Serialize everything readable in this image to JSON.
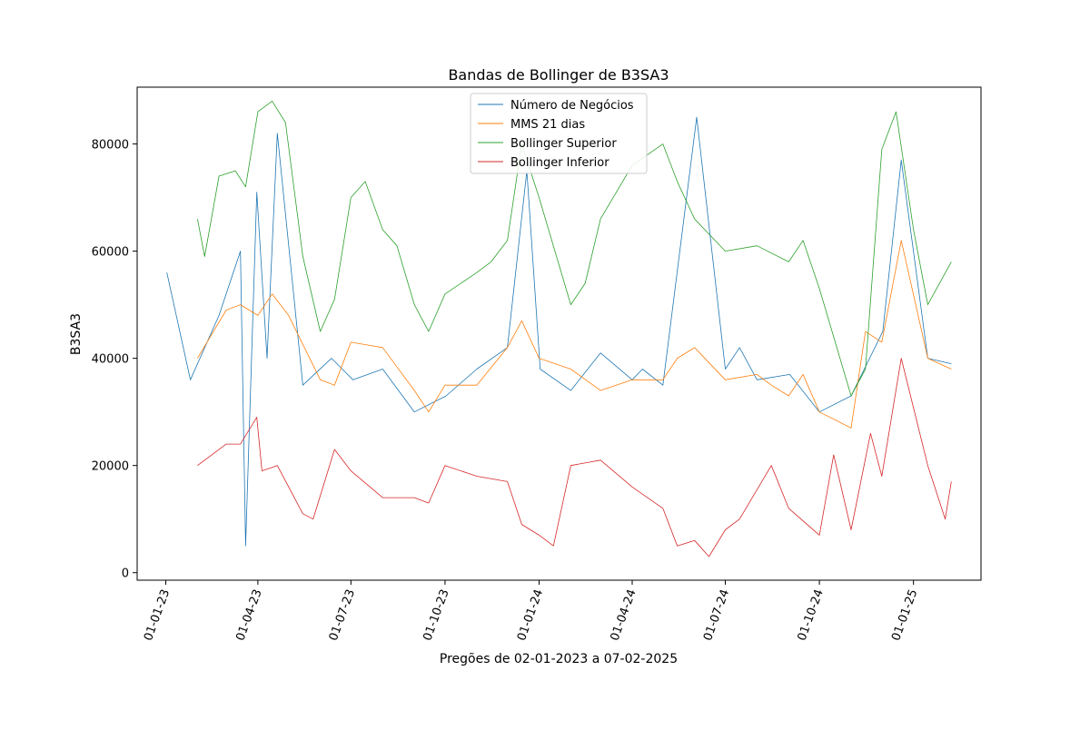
{
  "chart_data": {
    "type": "line",
    "title": "Bandas de Bollinger de B3SA3",
    "xlabel": "Pregões de 02-01-2023 a 07-02-2025",
    "ylabel": "B3SA3",
    "x_start": "2023-01-02",
    "x_end": "2025-02-07",
    "xlim": [
      "2022-12-04",
      "2025-03-08"
    ],
    "ylim": [
      -1400,
      90600
    ],
    "x_tick_labels": [
      "01-01-23",
      "01-04-23",
      "01-07-23",
      "01-10-23",
      "01-01-24",
      "01-04-24",
      "01-07-24",
      "01-10-24",
      "01-01-25"
    ],
    "y_ticks": [
      0,
      20000,
      40000,
      60000,
      80000
    ],
    "y_tick_labels": [
      "0",
      "20000",
      "40000",
      "60000",
      "80000"
    ],
    "grid": false,
    "legend_position": "top-center",
    "series": [
      {
        "name": "Número de Negócios",
        "color": "#1f77b4",
        "x": [
          "2023-01-02",
          "2023-01-25",
          "2023-02-22",
          "2023-03-15",
          "2023-03-20",
          "2023-03-31",
          "2023-04-10",
          "2023-04-20",
          "2023-05-15",
          "2023-06-12",
          "2023-07-03",
          "2023-08-01",
          "2023-09-01",
          "2023-10-02",
          "2023-11-01",
          "2023-12-01",
          "2023-12-20",
          "2024-01-02",
          "2024-02-01",
          "2024-03-01",
          "2024-04-01",
          "2024-04-11",
          "2024-05-01",
          "2024-06-03",
          "2024-07-01",
          "2024-07-15",
          "2024-08-01",
          "2024-09-02",
          "2024-10-01",
          "2024-11-01",
          "2024-12-02",
          "2024-12-20",
          "2025-01-15",
          "2025-02-07"
        ],
        "values": [
          56000,
          36000,
          48000,
          60000,
          5000,
          71000,
          40000,
          82000,
          35000,
          40000,
          36000,
          38000,
          30000,
          33000,
          38000,
          42000,
          75000,
          38000,
          34000,
          41000,
          36000,
          38000,
          35000,
          85000,
          38000,
          42000,
          36000,
          37000,
          30000,
          33000,
          45000,
          77000,
          40000,
          39000
        ]
      },
      {
        "name": "MMS 21 dias",
        "color": "#ff7f0e",
        "x": [
          "2023-02-01",
          "2023-03-01",
          "2023-03-15",
          "2023-04-01",
          "2023-04-15",
          "2023-05-01",
          "2023-06-01",
          "2023-06-15",
          "2023-07-01",
          "2023-08-01",
          "2023-09-01",
          "2023-09-15",
          "2023-10-01",
          "2023-11-01",
          "2023-12-01",
          "2023-12-15",
          "2024-01-01",
          "2024-02-01",
          "2024-03-01",
          "2024-04-01",
          "2024-05-01",
          "2024-05-15",
          "2024-06-01",
          "2024-07-01",
          "2024-08-01",
          "2024-08-15",
          "2024-09-01",
          "2024-09-15",
          "2024-10-01",
          "2024-11-01",
          "2024-11-15",
          "2024-12-01",
          "2024-12-20",
          "2025-01-15",
          "2025-02-07"
        ],
        "values": [
          40000,
          49000,
          50000,
          48000,
          52000,
          48000,
          36000,
          35000,
          43000,
          42000,
          34000,
          30000,
          35000,
          35000,
          42000,
          47000,
          40000,
          38000,
          34000,
          36000,
          36000,
          40000,
          42000,
          36000,
          37000,
          35000,
          33000,
          37000,
          30000,
          27000,
          45000,
          43000,
          62000,
          40000,
          38000
        ]
      },
      {
        "name": "Bollinger Superior",
        "color": "#2ca02c",
        "x": [
          "2023-02-01",
          "2023-02-08",
          "2023-02-22",
          "2023-03-10",
          "2023-03-20",
          "2023-04-01",
          "2023-04-15",
          "2023-04-28",
          "2023-05-15",
          "2023-06-01",
          "2023-06-15",
          "2023-07-01",
          "2023-07-15",
          "2023-08-01",
          "2023-08-15",
          "2023-09-01",
          "2023-09-15",
          "2023-10-01",
          "2023-11-01",
          "2023-11-15",
          "2023-12-01",
          "2023-12-15",
          "2024-01-01",
          "2024-02-01",
          "2024-02-15",
          "2024-03-01",
          "2024-04-01",
          "2024-05-01",
          "2024-05-15",
          "2024-06-01",
          "2024-07-01",
          "2024-08-01",
          "2024-09-01",
          "2024-09-15",
          "2024-10-01",
          "2024-11-01",
          "2024-11-15",
          "2024-12-01",
          "2024-12-15",
          "2025-01-01",
          "2025-01-15",
          "2025-02-07"
        ],
        "values": [
          66000,
          59000,
          74000,
          75000,
          72000,
          86000,
          88000,
          84000,
          59000,
          45000,
          51000,
          70000,
          73000,
          64000,
          61000,
          50000,
          45000,
          52000,
          56000,
          58000,
          62000,
          80000,
          70000,
          50000,
          54000,
          66000,
          76000,
          80000,
          73000,
          66000,
          60000,
          61000,
          58000,
          62000,
          53000,
          33000,
          38000,
          79000,
          86000,
          64000,
          50000,
          58000
        ]
      },
      {
        "name": "Bollinger Inferior",
        "color": "#d62728",
        "x": [
          "2023-02-01",
          "2023-02-15",
          "2023-03-01",
          "2023-03-15",
          "2023-03-31",
          "2023-04-05",
          "2023-04-20",
          "2023-05-15",
          "2023-05-25",
          "2023-06-15",
          "2023-07-01",
          "2023-08-01",
          "2023-09-01",
          "2023-09-15",
          "2023-10-01",
          "2023-11-01",
          "2023-12-01",
          "2023-12-15",
          "2024-01-01",
          "2024-01-15",
          "2024-02-01",
          "2024-03-01",
          "2024-04-01",
          "2024-05-01",
          "2024-05-15",
          "2024-06-01",
          "2024-06-15",
          "2024-07-01",
          "2024-07-15",
          "2024-08-15",
          "2024-09-01",
          "2024-10-01",
          "2024-10-15",
          "2024-11-01",
          "2024-11-20",
          "2024-12-01",
          "2024-12-20",
          "2025-01-15",
          "2025-02-01",
          "2025-02-07"
        ],
        "values": [
          20000,
          22000,
          24000,
          24000,
          29000,
          19000,
          20000,
          11000,
          10000,
          23000,
          19000,
          14000,
          14000,
          13000,
          20000,
          18000,
          17000,
          9000,
          7000,
          5000,
          20000,
          21000,
          16000,
          12000,
          5000,
          6000,
          3000,
          8000,
          10000,
          20000,
          12000,
          7000,
          22000,
          8000,
          26000,
          18000,
          40000,
          20000,
          10000,
          17000
        ]
      }
    ]
  }
}
